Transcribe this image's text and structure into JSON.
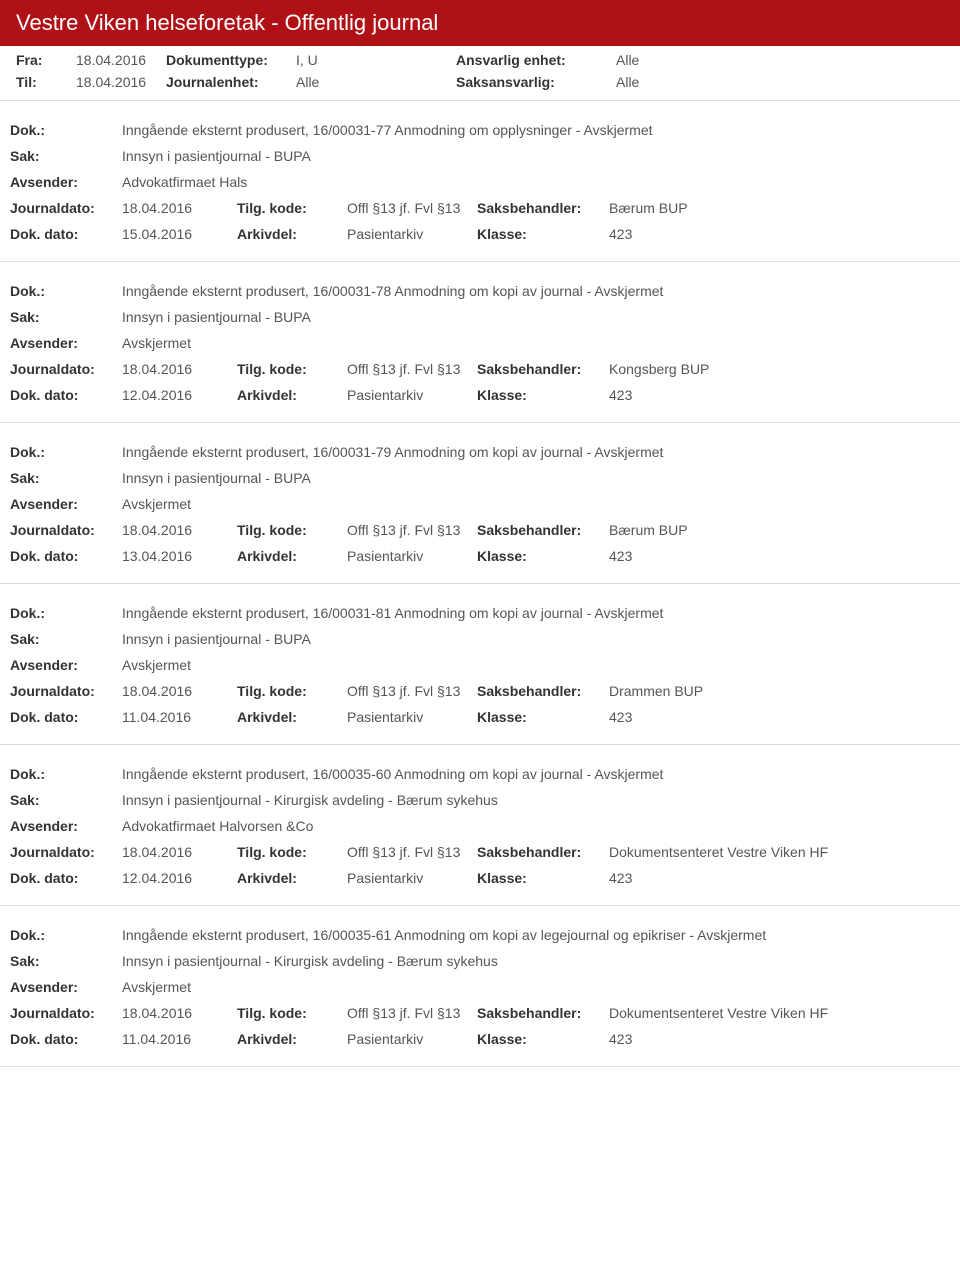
{
  "header": {
    "title": "Vestre Viken helseforetak - Offentlig journal"
  },
  "meta": {
    "fra_label": "Fra:",
    "fra_value": "18.04.2016",
    "til_label": "Til:",
    "til_value": "18.04.2016",
    "doktype_label": "Dokumenttype:",
    "doktype_value": "I, U",
    "journalenhet_label": "Journalenhet:",
    "journalenhet_value": "Alle",
    "ansvarlig_label": "Ansvarlig enhet:",
    "ansvarlig_value": "Alle",
    "saksansvarlig_label": "Saksansvarlig:",
    "saksansvarlig_value": "Alle"
  },
  "labels": {
    "dok": "Dok.:",
    "sak": "Sak:",
    "avsender": "Avsender:",
    "journaldato": "Journaldato:",
    "dokdato": "Dok. dato:",
    "tilgkode": "Tilg. kode:",
    "arkivdel": "Arkivdel:",
    "saksbehandler": "Saksbehandler:",
    "klasse": "Klasse:"
  },
  "entries": [
    {
      "dok": "Inngående eksternt produsert, 16/00031-77 Anmodning om opplysninger - Avskjermet",
      "sak": "Innsyn i pasientjournal - BUPA",
      "avsender": "Advokatfirmaet Hals",
      "journaldato": "18.04.2016",
      "tilgkode": "Offl §13 jf. Fvl §13",
      "saksbehandler": "Bærum BUP",
      "dokdato": "15.04.2016",
      "arkivdel": "Pasientarkiv",
      "klasse": "423"
    },
    {
      "dok": "Inngående eksternt produsert, 16/00031-78 Anmodning om kopi av journal - Avskjermet",
      "sak": "Innsyn i pasientjournal - BUPA",
      "avsender": "Avskjermet",
      "journaldato": "18.04.2016",
      "tilgkode": "Offl §13 jf. Fvl §13",
      "saksbehandler": "Kongsberg BUP",
      "dokdato": "12.04.2016",
      "arkivdel": "Pasientarkiv",
      "klasse": "423"
    },
    {
      "dok": "Inngående eksternt produsert, 16/00031-79 Anmodning om kopi av journal - Avskjermet",
      "sak": "Innsyn i pasientjournal - BUPA",
      "avsender": "Avskjermet",
      "journaldato": "18.04.2016",
      "tilgkode": "Offl §13 jf. Fvl §13",
      "saksbehandler": "Bærum BUP",
      "dokdato": "13.04.2016",
      "arkivdel": "Pasientarkiv",
      "klasse": "423"
    },
    {
      "dok": "Inngående eksternt produsert, 16/00031-81 Anmodning om kopi av journal - Avskjermet",
      "sak": "Innsyn i pasientjournal - BUPA",
      "avsender": "Avskjermet",
      "journaldato": "18.04.2016",
      "tilgkode": "Offl §13 jf. Fvl §13",
      "saksbehandler": "Drammen BUP",
      "dokdato": "11.04.2016",
      "arkivdel": "Pasientarkiv",
      "klasse": "423"
    },
    {
      "dok": "Inngående eksternt produsert, 16/00035-60 Anmodning om kopi av journal - Avskjermet",
      "sak": "Innsyn i pasientjournal - Kirurgisk avdeling - Bærum sykehus",
      "avsender": "Advokatfirmaet Halvorsen &Co",
      "journaldato": "18.04.2016",
      "tilgkode": "Offl §13 jf. Fvl §13",
      "saksbehandler": "Dokumentsenteret Vestre Viken HF",
      "dokdato": "12.04.2016",
      "arkivdel": "Pasientarkiv",
      "klasse": "423"
    },
    {
      "dok": "Inngående eksternt produsert, 16/00035-61 Anmodning om kopi av legejournal og epikriser - Avskjermet",
      "sak": "Innsyn i pasientjournal - Kirurgisk avdeling - Bærum sykehus",
      "avsender": "Avskjermet",
      "journaldato": "18.04.2016",
      "tilgkode": "Offl §13 jf. Fvl §13",
      "saksbehandler": "Dokumentsenteret Vestre Viken HF",
      "dokdato": "11.04.2016",
      "arkivdel": "Pasientarkiv",
      "klasse": "423"
    }
  ]
}
